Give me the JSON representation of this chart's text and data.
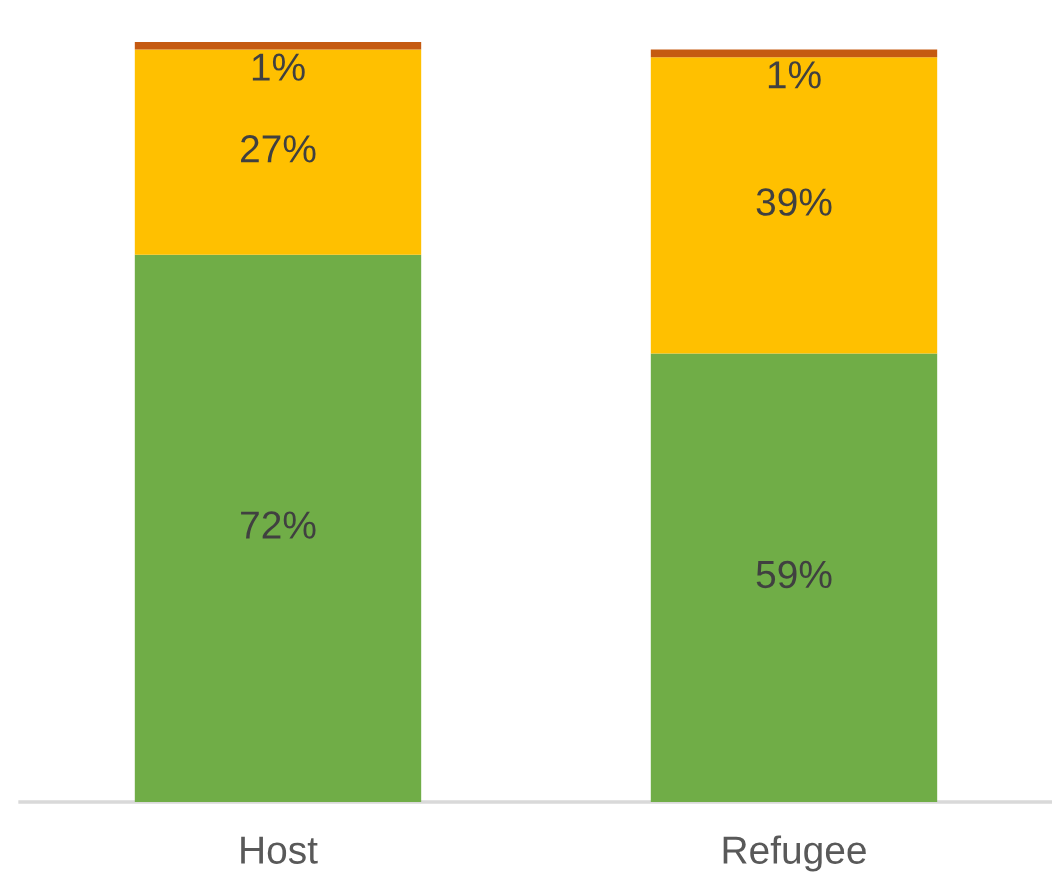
{
  "chart_data": {
    "type": "bar",
    "stacked": true,
    "categories": [
      "Host",
      "Refugee"
    ],
    "series": [
      {
        "color": "#70ad47",
        "values": [
          72,
          59
        ],
        "value_labels": [
          "72%",
          "59%"
        ]
      },
      {
        "color": "#ffc000",
        "values": [
          27,
          39
        ],
        "value_labels": [
          "27%",
          "39%"
        ]
      },
      {
        "color": "#c55a11",
        "values": [
          1,
          1
        ],
        "value_labels": [
          "1%",
          "1%"
        ]
      }
    ]
  }
}
